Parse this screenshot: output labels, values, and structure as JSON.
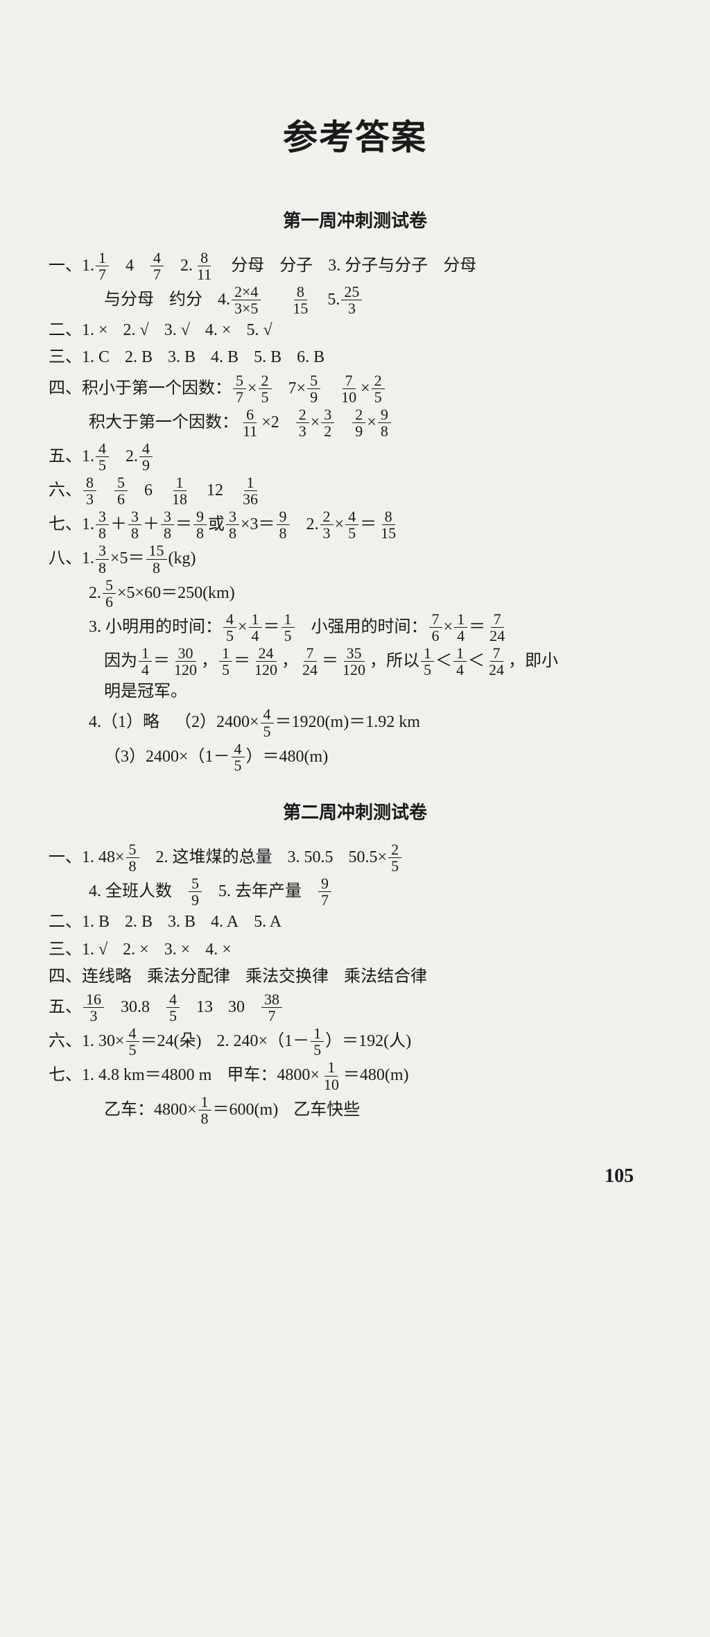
{
  "page": {
    "title": "参考答案",
    "number": "105",
    "background": "#f2f0ed",
    "text_color": "#1a1a1a"
  },
  "section1": {
    "title": "第一周冲刺测试卷",
    "q1": {
      "lead": "一、1.",
      "f1n": "1",
      "f1d": "7",
      "v1": "4",
      "f2n": "4",
      "f2d": "7",
      "p2": "2.",
      "f3n": "8",
      "f3d": "11",
      "t1": "分母",
      "t2": "分子",
      "p3": "3. 分子与分子",
      "t3": "分母",
      "cont": "与分母",
      "t4": "约分",
      "p4": "4.",
      "f4n": "2×4",
      "f4d": "3×5",
      "f5n": "8",
      "f5d": "15",
      "p5": "5.",
      "f6n": "25",
      "f6d": "3"
    },
    "q2": {
      "lead": "二、1. ×",
      "a2": "2. √",
      "a3": "3. √",
      "a4": "4. ×",
      "a5": "5. √"
    },
    "q3": {
      "lead": "三、1. C",
      "a2": "2. B",
      "a3": "3. B",
      "a4": "4. B",
      "a5": "5. B",
      "a6": "6. B"
    },
    "q4": {
      "lead": "四、积小于第一个因数：",
      "f1an": "5",
      "f1ad": "7",
      "f1bn": "2",
      "f1bd": "5",
      "m2": "7×",
      "f2n": "5",
      "f2d": "9",
      "f3an": "7",
      "f3ad": "10",
      "f3bn": "2",
      "f3bd": "5",
      "lead2": "积大于第一个因数：",
      "g1n": "6",
      "g1d": "11",
      "g1t": "×2",
      "g2an": "2",
      "g2ad": "3",
      "g2bn": "3",
      "g2bd": "2",
      "g3an": "2",
      "g3ad": "9",
      "g3bn": "9",
      "g3bd": "8"
    },
    "q5": {
      "lead": "五、1.",
      "f1n": "4",
      "f1d": "5",
      "p2": "2.",
      "f2n": "4",
      "f2d": "9"
    },
    "q6": {
      "lead": "六、",
      "f1n": "8",
      "f1d": "3",
      "f2n": "5",
      "f2d": "6",
      "v3": "6",
      "f4n": "1",
      "f4d": "18",
      "v5": "12",
      "f6n": "1",
      "f6d": "36"
    },
    "q7": {
      "lead": "七、1.",
      "fan": "3",
      "fad": "8",
      "plus": "＋",
      "eq": "＝",
      "fr1n": "9",
      "fr1d": "8",
      "or": "或",
      "times": "×3＝",
      "fr2n": "9",
      "fr2d": "8",
      "p2": "2.",
      "g1n": "2",
      "g1d": "3",
      "g2n": "4",
      "g2d": "5",
      "grn": "8",
      "grd": "15"
    },
    "q8": {
      "lead": "八、1.",
      "f1n": "3",
      "f1d": "8",
      "m1": "×5＝",
      "r1n": "15",
      "r1d": "8",
      "u1": "(kg)",
      "p2": "2.",
      "f2n": "5",
      "f2d": "6",
      "t2": "×5×60＝250(km)",
      "p3": "3. 小明用的时间：",
      "f3an": "4",
      "f3ad": "5",
      "f3bn": "1",
      "f3bd": "4",
      "f3rn": "1",
      "f3rd": "5",
      "p3b": "小强用的时间：",
      "f3cn": "7",
      "f3cd": "6",
      "f3dn": "1",
      "f3dd": "4",
      "f3en": "7",
      "f3ed": "24",
      "p3c": "因为",
      "c1n": "1",
      "c1d": "4",
      "c1rn": "30",
      "c1rd": "120",
      "comma": "，",
      "c2n": "1",
      "c2d": "5",
      "c2rn": "24",
      "c2rd": "120",
      "c3n": "7",
      "c3d": "24",
      "c3rn": "35",
      "c3rd": "120",
      "so": "，所以",
      "lt": "＜",
      "end": "，即小",
      "p3d": "明是冠军。",
      "p4": "4.（1）略",
      "p4b": "（2）2400×",
      "f4n": "4",
      "f4d": "5",
      "p4c": "＝1920(m)＝1.92 km",
      "p4d": "（3）2400×（1－",
      "f4dn": "4",
      "f4dd": "5",
      "p4e": "）＝480(m)"
    }
  },
  "section2": {
    "title": "第二周冲刺测试卷",
    "q1": {
      "lead": "一、1. 48×",
      "f1n": "5",
      "f1d": "8",
      "p2": "2. 这堆煤的总量",
      "p3": "3. 50.5",
      "p3b": "50.5×",
      "f3n": "2",
      "f3d": "5",
      "p4": "4. 全班人数",
      "f4n": "5",
      "f4d": "9",
      "p5": "5. 去年产量",
      "f5n": "9",
      "f5d": "7"
    },
    "q2": {
      "lead": "二、1. B",
      "a2": "2. B",
      "a3": "3. B",
      "a4": "4. A",
      "a5": "5. A"
    },
    "q3": {
      "lead": "三、1. √",
      "a2": "2. ×",
      "a3": "3. ×",
      "a4": "4. ×"
    },
    "q4": {
      "lead": "四、连线略",
      "t2": "乘法分配律",
      "t3": "乘法交换律",
      "t4": "乘法结合律"
    },
    "q5": {
      "lead": "五、",
      "f1n": "16",
      "f1d": "3",
      "v2": "30.8",
      "f3n": "4",
      "f3d": "5",
      "v4": "13",
      "v5": "30",
      "f6n": "38",
      "f6d": "7"
    },
    "q6": {
      "lead": "六、1. 30×",
      "f1n": "4",
      "f1d": "5",
      "r1": "＝24(朵)",
      "p2": "2. 240×（1－",
      "f2n": "1",
      "f2d": "5",
      "r2": "）＝192(人)"
    },
    "q7": {
      "lead": "七、1. 4.8 km＝4800 m",
      "t1": "甲车：4800×",
      "f1n": "1",
      "f1d": "10",
      "r1": "＝480(m)",
      "t2": "乙车：4800×",
      "f2n": "1",
      "f2d": "8",
      "r2": "＝600(m)",
      "t3": "乙车快些"
    }
  }
}
